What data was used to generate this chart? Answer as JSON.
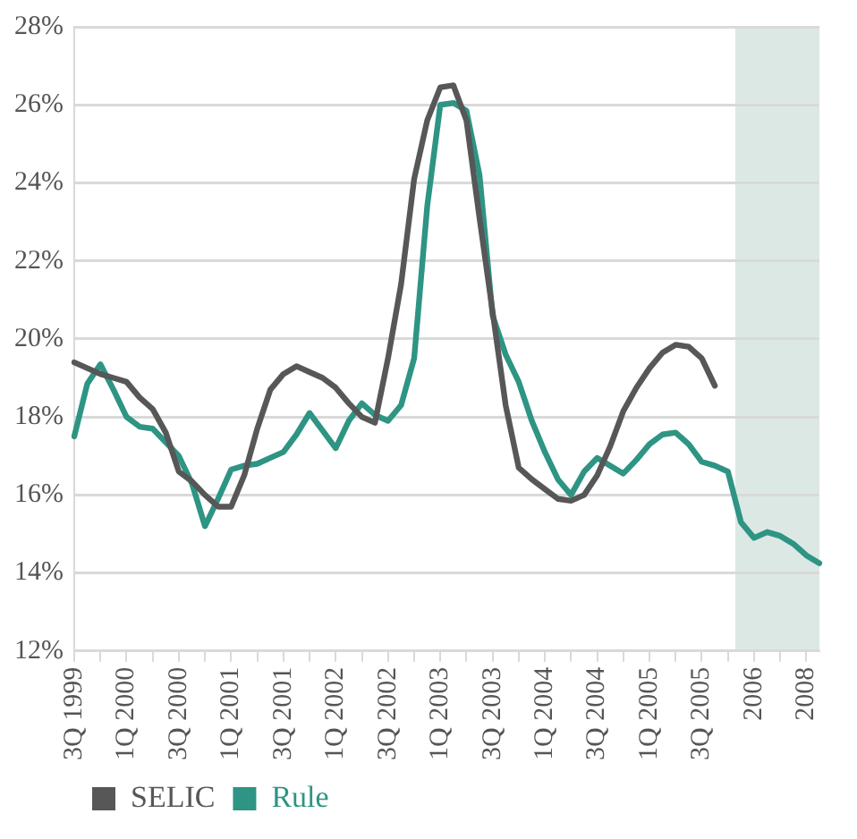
{
  "chart_data": {
    "type": "line",
    "ylim": [
      12,
      28
    ],
    "categories": [
      "3Q 1999",
      null,
      null,
      null,
      "1Q 2000",
      null,
      null,
      null,
      "3Q 2000",
      null,
      null,
      null,
      "1Q 2001",
      null,
      null,
      null,
      "3Q 2001",
      null,
      null,
      null,
      "1Q 2002",
      null,
      null,
      null,
      "3Q 2002",
      null,
      null,
      null,
      "1Q 2003",
      null,
      null,
      null,
      "3Q 2003",
      null,
      null,
      null,
      "1Q 2004",
      null,
      null,
      null,
      "3Q 2004",
      null,
      null,
      null,
      "1Q 2005",
      null,
      null,
      null,
      "3Q 2005",
      null,
      null,
      null,
      "2006",
      null,
      null,
      null,
      "2008",
      null
    ],
    "yticks": [
      {
        "value": 12,
        "label": "12%"
      },
      {
        "value": 14,
        "label": "14%"
      },
      {
        "value": 16,
        "label": "16%"
      },
      {
        "value": 18,
        "label": "18%"
      },
      {
        "value": 20,
        "label": "20%"
      },
      {
        "value": 22,
        "label": "22%"
      },
      {
        "value": 24,
        "label": "24%"
      },
      {
        "value": 26,
        "label": "26%"
      },
      {
        "value": 28,
        "label": "28%"
      }
    ],
    "grid": "y",
    "legend": "bottom left",
    "marker": "none",
    "line_style": "solid",
    "series": [
      {
        "name": "SELIC",
        "color": "#575757",
        "values": [
          19.4,
          19.25,
          19.1,
          19.0,
          18.9,
          18.5,
          18.2,
          17.6,
          16.6,
          16.35,
          16.0,
          15.7,
          15.7,
          16.5,
          17.7,
          18.7,
          19.1,
          19.3,
          19.15,
          19.0,
          18.75,
          18.35,
          18.0,
          17.85,
          19.5,
          21.4,
          24.1,
          25.6,
          26.45,
          26.5,
          25.6,
          23.1,
          20.7,
          18.3,
          16.7,
          16.4,
          16.15,
          15.9,
          15.85,
          16.0,
          16.5,
          17.25,
          18.15,
          18.75,
          19.25,
          19.65,
          19.85,
          19.8,
          19.5,
          18.8,
          null,
          null,
          null,
          null,
          null,
          null,
          null,
          null
        ]
      },
      {
        "name": "Rule",
        "color": "#2e9484",
        "values": [
          17.5,
          18.85,
          19.35,
          18.7,
          18.0,
          17.75,
          17.7,
          17.35,
          17.0,
          16.3,
          15.2,
          15.9,
          16.65,
          16.75,
          16.8,
          16.95,
          17.1,
          17.55,
          18.1,
          17.65,
          17.2,
          17.9,
          18.35,
          18.05,
          17.9,
          18.3,
          19.5,
          23.4,
          26.0,
          26.05,
          25.85,
          24.2,
          20.6,
          19.6,
          18.9,
          17.9,
          17.1,
          16.4,
          16.0,
          16.6,
          16.95,
          16.75,
          16.55,
          16.9,
          17.3,
          17.55,
          17.6,
          17.3,
          16.85,
          16.75,
          16.6,
          15.3,
          14.9,
          15.05,
          14.95,
          14.75,
          14.45,
          14.25
        ]
      }
    ]
  }
}
